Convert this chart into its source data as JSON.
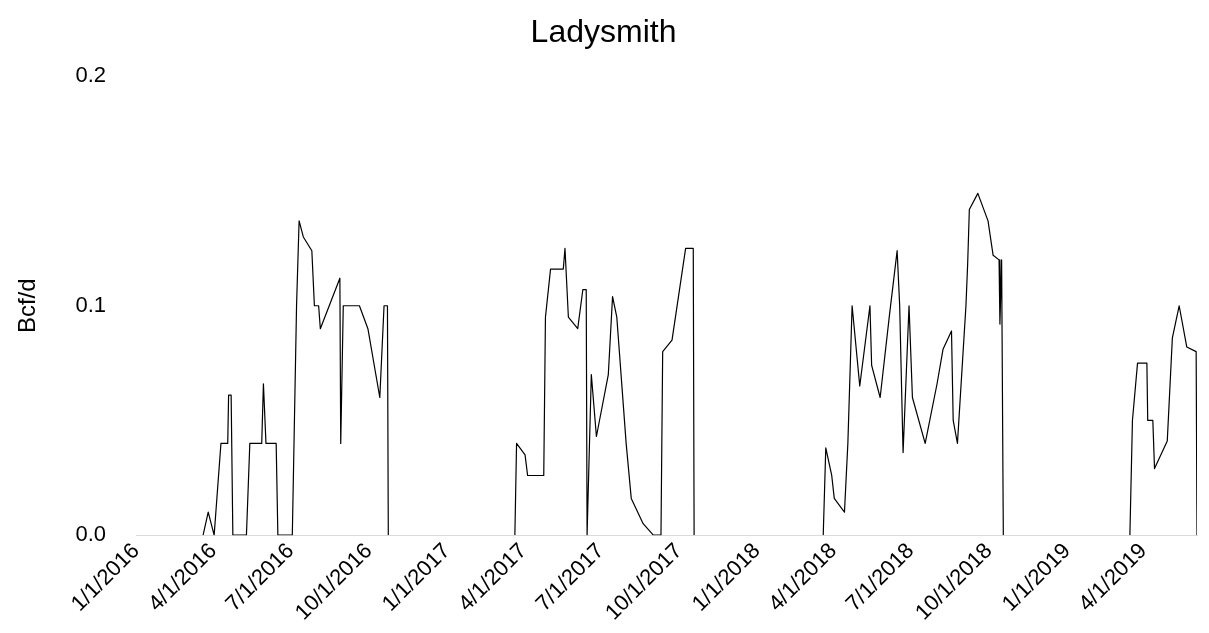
{
  "chart_data": {
    "type": "line",
    "title": "Ladysmith",
    "ylabel": "Bcf/d",
    "color": "#000000",
    "legend": false,
    "grid": false,
    "marker": "none",
    "x": [
      "2016-03-20",
      "2016-03-26",
      "2016-04-02",
      "2016-04-10",
      "2016-04-18",
      "2016-04-19",
      "2016-04-22",
      "2016-04-24",
      "2016-05-10",
      "2016-05-14",
      "2016-05-28",
      "2016-05-30",
      "2016-06-02",
      "2016-06-14",
      "2016-06-16",
      "2016-07-03",
      "2016-07-08",
      "2016-07-11",
      "2016-07-16",
      "2016-07-26",
      "2016-07-29",
      "2016-08-03",
      "2016-08-05",
      "2016-08-28",
      "2016-08-29",
      "2016-09-01",
      "2016-09-20",
      "2016-09-30",
      "2016-10-14",
      "2016-10-19",
      "2016-10-23",
      "2016-10-24",
      "2016-11-01",
      "2017-03-22",
      "2017-03-24",
      "2017-04-03",
      "2017-04-06",
      "2017-04-25",
      "2017-04-27",
      "2017-05-03",
      "2017-05-18",
      "2017-05-20",
      "2017-05-24",
      "2017-06-04",
      "2017-06-10",
      "2017-06-14",
      "2017-06-15",
      "2017-06-20",
      "2017-06-26",
      "2017-07-10",
      "2017-07-15",
      "2017-07-20",
      "2017-07-31",
      "2017-08-06",
      "2017-08-20",
      "2017-09-01",
      "2017-09-10",
      "2017-09-12",
      "2017-09-23",
      "2017-10-09",
      "2017-10-18",
      "2017-10-19",
      "2017-11-01",
      "2018-03-20",
      "2018-03-23",
      "2018-03-30",
      "2018-04-02",
      "2018-04-14",
      "2018-04-18",
      "2018-04-23",
      "2018-05-02",
      "2018-05-14",
      "2018-05-16",
      "2018-05-26",
      "2018-06-06",
      "2018-06-15",
      "2018-06-18",
      "2018-06-22",
      "2018-06-29",
      "2018-07-03",
      "2018-07-18",
      "2018-08-01",
      "2018-08-08",
      "2018-08-18",
      "2018-08-20",
      "2018-08-25",
      "2018-09-04",
      "2018-09-06",
      "2018-09-08",
      "2018-09-18",
      "2018-09-30",
      "2018-10-06",
      "2018-10-13",
      "2018-10-14",
      "2018-10-16",
      "2018-10-18",
      "2018-11-01",
      "2019-03-16",
      "2019-03-19",
      "2019-03-25",
      "2019-04-05",
      "2019-04-06",
      "2019-04-12",
      "2019-04-14",
      "2019-04-29",
      "2019-05-05",
      "2019-05-13",
      "2019-05-22",
      "2019-06-02",
      "2019-06-03"
    ],
    "values": [
      0.0,
      0.01,
      0.0,
      0.04,
      0.04,
      0.061,
      0.061,
      0.0,
      0.0,
      0.04,
      0.04,
      0.066,
      0.04,
      0.04,
      0.0,
      0.0,
      0.1,
      0.137,
      0.13,
      0.124,
      0.1,
      0.1,
      0.09,
      0.112,
      0.04,
      0.1,
      0.1,
      0.09,
      0.06,
      0.1,
      0.1,
      0.0,
      null,
      0.0,
      0.04,
      0.035,
      0.026,
      0.026,
      0.095,
      0.116,
      0.116,
      0.125,
      0.095,
      0.09,
      0.107,
      0.107,
      0.0,
      0.07,
      0.043,
      0.07,
      0.104,
      0.095,
      0.04,
      0.016,
      0.005,
      0.0,
      0.0,
      0.08,
      0.085,
      0.125,
      0.125,
      0.0,
      null,
      0.0,
      0.038,
      0.026,
      0.016,
      0.01,
      0.04,
      0.1,
      0.065,
      0.1,
      0.074,
      0.06,
      0.096,
      0.124,
      0.1,
      0.036,
      0.1,
      0.06,
      0.04,
      0.066,
      0.081,
      0.089,
      0.05,
      0.04,
      0.1,
      0.118,
      0.142,
      0.149,
      0.137,
      0.122,
      0.12,
      0.092,
      0.12,
      0.0,
      null,
      0.0,
      0.05,
      0.075,
      0.075,
      0.05,
      0.05,
      0.029,
      0.041,
      0.086,
      0.1,
      0.082,
      0.08,
      0.0
    ],
    "xticks": [
      {
        "value": "2016-01-01",
        "label": "1/1/2016"
      },
      {
        "value": "2016-04-01",
        "label": "4/1/2016"
      },
      {
        "value": "2016-07-01",
        "label": "7/1/2016"
      },
      {
        "value": "2016-10-01",
        "label": "10/1/2016"
      },
      {
        "value": "2017-01-01",
        "label": "1/1/2017"
      },
      {
        "value": "2017-04-01",
        "label": "4/1/2017"
      },
      {
        "value": "2017-07-01",
        "label": "7/1/2017"
      },
      {
        "value": "2017-10-01",
        "label": "10/1/2017"
      },
      {
        "value": "2018-01-01",
        "label": "1/1/2018"
      },
      {
        "value": "2018-04-01",
        "label": "4/1/2018"
      },
      {
        "value": "2018-07-01",
        "label": "7/1/2018"
      },
      {
        "value": "2018-10-01",
        "label": "10/1/2018"
      },
      {
        "value": "2019-01-01",
        "label": "1/1/2019"
      },
      {
        "value": "2019-04-01",
        "label": "4/1/2019"
      }
    ],
    "xlim": [
      "2016-01-01",
      "2019-06-03"
    ],
    "ylim": [
      0,
      0.2
    ],
    "yticks": [
      {
        "value": 0,
        "label": "0.0"
      },
      {
        "value": 0.1,
        "label": "0.1"
      },
      {
        "value": 0.2,
        "label": "0.2"
      }
    ]
  }
}
